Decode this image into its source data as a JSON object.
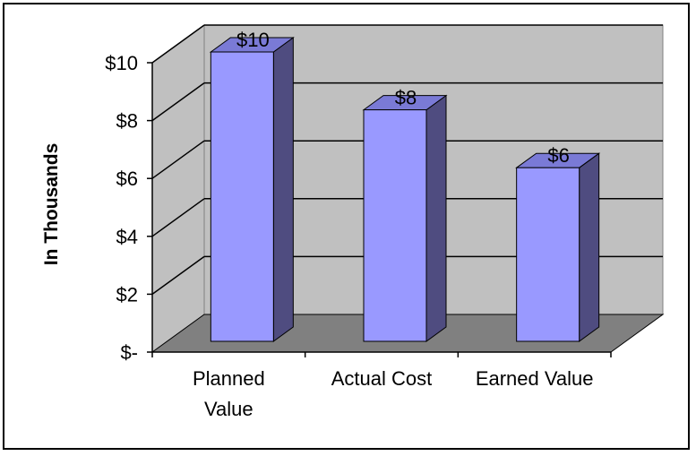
{
  "chart_data": {
    "type": "bar",
    "categories": [
      "Planned Value",
      "Actual Cost",
      "Earned Value"
    ],
    "category_lines": [
      [
        "Planned",
        "Value"
      ],
      [
        "Actual Cost"
      ],
      [
        "Earned Value"
      ]
    ],
    "values": [
      10,
      8,
      6
    ],
    "data_labels": [
      "$10",
      "$8",
      "$6"
    ],
    "ytick_labels": [
      "$-",
      "$2",
      "$4",
      "$6",
      "$8",
      "$10"
    ],
    "ytick_values": [
      0,
      2,
      4,
      6,
      8,
      10
    ],
    "ylabel": "In Thousands",
    "xlabel": "",
    "title": "",
    "ylim": [
      0,
      10
    ],
    "grid": true,
    "style": "3d-column",
    "colors": {
      "bar_front": "#9999FF",
      "bar_top": "#7A7AD6",
      "bar_side": "#4F4C80",
      "back_wall": "#C0C0C0",
      "side_wall": "#C0C0C0",
      "floor": "#808080",
      "gridline": "#000000"
    }
  }
}
